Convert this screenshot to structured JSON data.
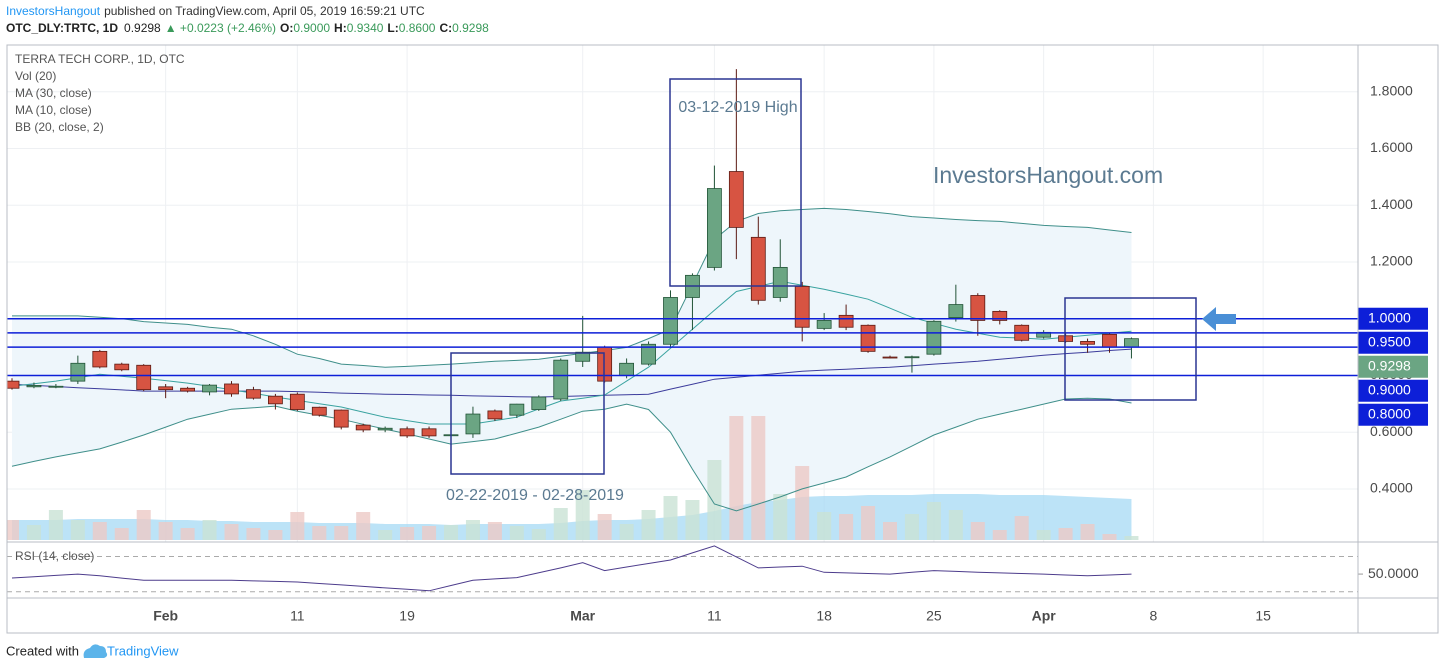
{
  "header": {
    "author": "InvestorsHangout",
    "published": "published on TradingView.com, April 05, 2019 16:59:21 UTC",
    "symbol": "OTC_DLY:TRTC, 1D",
    "price": "0.9298",
    "change": "▲ +0.0223 (+2.46%)",
    "ohlc": [
      {
        "label": "O:",
        "value": "0.9000"
      },
      {
        "label": "H:",
        "value": "0.9340"
      },
      {
        "label": "L:",
        "value": "0.8600"
      },
      {
        "label": "C:",
        "value": "0.9298"
      }
    ]
  },
  "footer": {
    "created": "Created with",
    "brand": "TradingView"
  },
  "chart_data": {
    "type": "candlestick",
    "title": "TERRA TECH CORP., 1D, OTC",
    "up_color": "#6ba583",
    "down_color": "#d75442",
    "categories": [
      null,
      null,
      null,
      null,
      null,
      null,
      null,
      "Feb",
      null,
      null,
      null,
      null,
      null,
      "11",
      null,
      null,
      null,
      null,
      "19",
      null,
      null,
      null,
      null,
      null,
      null,
      null,
      "Mar",
      null,
      null,
      null,
      null,
      null,
      "11",
      null,
      null,
      null,
      null,
      "18",
      null,
      null,
      null,
      null,
      "25",
      null,
      null,
      null,
      null,
      "Apr",
      null,
      null,
      null,
      null,
      "8",
      null,
      null,
      null,
      null,
      "15",
      null,
      null,
      null,
      null
    ],
    "open": [
      0.78,
      0.76,
      0.76,
      0.78,
      0.885,
      0.84,
      0.836,
      0.76,
      0.755,
      0.742,
      0.77,
      0.75,
      0.727,
      0.734,
      0.688,
      0.678,
      0.625,
      0.608,
      0.612,
      0.612,
      0.59,
      0.594,
      0.675,
      0.66,
      0.68,
      0.717,
      0.85,
      0.9,
      0.8,
      0.84,
      0.91,
      1.075,
      1.181,
      1.519,
      1.287,
      1.075,
      1.114,
      0.966,
      1.012,
      0.977,
      0.865,
      0.865,
      0.875,
      1.004,
      1.082,
      1.026,
      0.977,
      0.935,
      0.94,
      0.92,
      0.945,
      0.9,
      null,
      null,
      null,
      null,
      null,
      null,
      null,
      null,
      null,
      null
    ],
    "high": [
      0.79,
      0.775,
      0.77,
      0.87,
      0.89,
      0.845,
      0.84,
      0.77,
      0.76,
      0.77,
      0.78,
      0.76,
      0.735,
      0.74,
      0.69,
      0.68,
      0.63,
      0.62,
      0.62,
      0.62,
      0.595,
      0.69,
      0.68,
      0.7,
      0.73,
      0.86,
      1.01,
      0.905,
      0.86,
      0.92,
      1.1,
      1.16,
      1.54,
      1.88,
      1.36,
      1.28,
      1.13,
      1.02,
      1.05,
      0.98,
      0.87,
      0.87,
      0.995,
      1.12,
      1.09,
      1.03,
      0.98,
      0.96,
      0.95,
      0.93,
      0.95,
      0.934,
      null,
      null,
      null,
      null,
      null,
      null,
      null,
      null,
      null,
      null
    ],
    "low": [
      0.75,
      0.755,
      0.755,
      0.77,
      0.825,
      0.815,
      0.745,
      0.72,
      0.74,
      0.73,
      0.725,
      0.715,
      0.68,
      0.675,
      0.655,
      0.61,
      0.6,
      0.6,
      0.58,
      0.58,
      0.585,
      0.58,
      0.64,
      0.65,
      0.675,
      0.71,
      0.83,
      0.775,
      0.79,
      0.835,
      0.9,
      0.96,
      1.17,
      1.21,
      1.05,
      1.06,
      0.92,
      0.96,
      0.96,
      0.88,
      0.86,
      0.81,
      0.87,
      0.99,
      0.94,
      0.98,
      0.92,
      0.93,
      0.915,
      0.88,
      0.88,
      0.86,
      null,
      null,
      null,
      null,
      null,
      null,
      null,
      null,
      null,
      null
    ],
    "close": [
      0.755,
      0.765,
      0.762,
      0.843,
      0.83,
      0.82,
      0.75,
      0.75,
      0.745,
      0.766,
      0.735,
      0.72,
      0.7,
      0.68,
      0.66,
      0.618,
      0.608,
      0.614,
      0.587,
      0.587,
      0.591,
      0.664,
      0.647,
      0.699,
      0.724,
      0.854,
      0.882,
      0.78,
      0.843,
      0.91,
      1.075,
      1.153,
      1.459,
      1.322,
      1.065,
      1.181,
      0.97,
      0.994,
      0.97,
      0.885,
      0.864,
      0.866,
      0.991,
      1.05,
      0.994,
      0.994,
      0.924,
      0.952,
      0.92,
      0.91,
      0.9,
      0.9298,
      null,
      null,
      null,
      null,
      null,
      null,
      null,
      null,
      null,
      null
    ],
    "ylim": [
      0.22,
      1.965
    ],
    "yticks": [
      {
        "value": 1.8,
        "label": "1.8000"
      },
      {
        "value": 1.6,
        "label": "1.6000"
      },
      {
        "value": 1.4,
        "label": "1.4000"
      },
      {
        "value": 1.2,
        "label": "1.2000"
      },
      {
        "value": 1.0,
        "label": "1.0000"
      },
      {
        "value": 0.8,
        "label": "0.8000"
      },
      {
        "value": 0.6,
        "label": "0.6000"
      },
      {
        "value": 0.4,
        "label": "0.4000"
      }
    ],
    "grid": true,
    "volume": {
      "name": "Vol (20)",
      "up_color": "#c9e2d4",
      "down_color": "#ecc9c5",
      "ma_color": "#a6daf4",
      "values": [
        20,
        15,
        30,
        20,
        18,
        12,
        30,
        18,
        12,
        20,
        16,
        12,
        10,
        28,
        14,
        14,
        28,
        10,
        13,
        14,
        15,
        20,
        18,
        14,
        11,
        32,
        50,
        26,
        16,
        30,
        44,
        40,
        80,
        124,
        124,
        46,
        74,
        28,
        26,
        34,
        18,
        26,
        38,
        30,
        18,
        10,
        24,
        10,
        12,
        16,
        6,
        4,
        null,
        null,
        null,
        null,
        null,
        null,
        null,
        null,
        null,
        null
      ],
      "ma_values": [
        20,
        20,
        20,
        21,
        21,
        21,
        21,
        20,
        20,
        19,
        19,
        18,
        18,
        18,
        17,
        17,
        17,
        16,
        16,
        16,
        15,
        16,
        16,
        16,
        16,
        17,
        19,
        20,
        20,
        21,
        23,
        25,
        29,
        34,
        38,
        40,
        43,
        44,
        44,
        45,
        45,
        45,
        46,
        46,
        46,
        45,
        45,
        45,
        44,
        43,
        42,
        41,
        null,
        null,
        null,
        null,
        null,
        null,
        null,
        null,
        null,
        null
      ]
    },
    "indicators": [
      {
        "name": "MA (30, close)",
        "color": "#3c3c9c",
        "values": [
          0.769,
          0.765,
          0.761,
          0.757,
          0.753,
          0.749,
          0.745,
          0.745,
          0.745,
          0.745,
          0.745,
          0.745,
          0.745,
          0.743,
          0.741,
          0.738,
          0.736,
          0.734,
          0.733,
          0.731,
          0.73,
          0.728,
          0.727,
          0.725,
          0.724,
          0.726,
          0.728,
          0.73,
          0.732,
          0.734,
          0.752,
          0.769,
          0.787,
          0.794,
          0.801,
          0.808,
          0.815,
          0.819,
          0.822,
          0.826,
          0.829,
          0.834,
          0.84,
          0.845,
          0.85,
          0.857,
          0.864,
          0.871,
          0.877,
          0.882,
          0.888,
          0.893,
          null,
          null,
          null,
          null,
          null,
          null,
          null,
          null,
          null,
          null
        ]
      },
      {
        "name": "MA (10, close)",
        "color": "#3aa3a0",
        "values": [
          0.762,
          0.771,
          0.78,
          0.792,
          0.804,
          0.797,
          0.79,
          0.782,
          0.773,
          0.762,
          0.75,
          0.737,
          0.724,
          0.712,
          0.7,
          0.689,
          0.671,
          0.653,
          0.641,
          0.629,
          0.629,
          0.629,
          0.641,
          0.653,
          0.682,
          0.71,
          0.72,
          0.731,
          0.78,
          0.829,
          0.896,
          0.963,
          1.03,
          1.096,
          1.114,
          1.132,
          1.118,
          1.104,
          1.087,
          1.069,
          1.037,
          1.005,
          0.984,
          0.963,
          0.949,
          0.935,
          0.932,
          0.928,
          0.935,
          0.942,
          0.949,
          0.956,
          null,
          null,
          null,
          null,
          null,
          null,
          null,
          null,
          null,
          null
        ]
      },
      {
        "name": "BB (20, close, 2)",
        "color": "#3f8f8a",
        "fill": "#eef6fb",
        "upper": [
          1.01,
          1.01,
          1.01,
          1.01,
          1.005,
          1.0,
          0.99,
          0.985,
          0.98,
          0.97,
          0.963,
          0.94,
          0.91,
          0.875,
          0.86,
          0.84,
          0.835,
          0.829,
          0.832,
          0.836,
          0.84,
          0.845,
          0.85,
          0.853,
          0.857,
          0.868,
          0.878,
          0.888,
          0.899,
          0.93,
          0.963,
          1.12,
          1.28,
          1.343,
          1.371,
          1.381,
          1.385,
          1.389,
          1.385,
          1.378,
          1.37,
          1.36,
          1.355,
          1.35,
          1.346,
          1.343,
          1.336,
          1.329,
          1.325,
          1.322,
          1.313,
          1.304,
          null,
          null,
          null,
          null,
          null,
          null,
          null,
          null,
          null,
          null
        ],
        "lower": [
          0.48,
          0.497,
          0.513,
          0.527,
          0.541,
          0.565,
          0.59,
          0.618,
          0.646,
          0.663,
          0.681,
          0.686,
          0.692,
          0.674,
          0.66,
          0.646,
          0.628,
          0.611,
          0.594,
          0.576,
          0.558,
          0.567,
          0.576,
          0.597,
          0.618,
          0.646,
          0.674,
          0.681,
          0.699,
          0.68,
          0.6,
          0.47,
          0.347,
          0.323,
          0.347,
          0.372,
          0.4,
          0.421,
          0.442,
          0.478,
          0.513,
          0.551,
          0.59,
          0.618,
          0.646,
          0.664,
          0.681,
          0.699,
          0.717,
          0.72,
          0.717,
          0.703,
          null,
          null,
          null,
          null,
          null,
          null,
          null,
          null,
          null,
          null
        ]
      }
    ],
    "hlines": [
      {
        "value": 1.0,
        "label": "1.0000"
      },
      {
        "value": 0.95,
        "label": "0.9500"
      },
      {
        "value": 0.9,
        "label": "0.9000"
      },
      {
        "value": 0.8,
        "label": "0.8000"
      }
    ],
    "hline_color": "#0d1fd8",
    "rsi": {
      "name": "RSI (14, close)",
      "color": "#4d3c8c",
      "ylim": [
        24,
        83
      ],
      "yticks": [
        {
          "value": 50,
          "label": "50.0000"
        }
      ],
      "levels": [
        70,
        30
      ],
      "values": [
        45.6,
        47,
        48.5,
        50,
        48,
        45.5,
        43,
        43,
        43,
        43,
        43,
        42.3,
        41.7,
        41,
        39.3,
        37.7,
        36,
        34.3,
        32.7,
        31,
        37,
        43,
        44.5,
        46,
        51.5,
        57,
        63,
        54,
        58,
        62,
        66,
        74,
        82,
        69.5,
        57,
        58,
        59,
        52,
        51.3,
        50.7,
        50,
        52,
        54,
        53,
        52,
        51.3,
        50.7,
        50,
        49,
        48,
        49,
        50,
        null,
        null,
        null,
        null,
        null,
        null,
        null,
        null,
        null,
        null
      ]
    },
    "annotations": [
      "03-12-2019 High",
      "02-22-2019 - 02-28-2019"
    ],
    "watermark": "InvestorsHangout.com"
  }
}
